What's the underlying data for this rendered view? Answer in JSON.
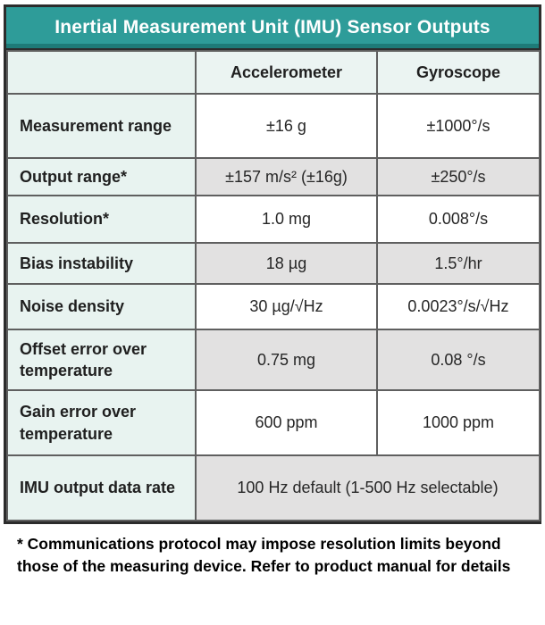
{
  "table": {
    "title": "Inertial Measurement Unit (IMU) Sensor Outputs",
    "columns": [
      "",
      "Accelerometer",
      "Gyroscope"
    ],
    "rows": [
      {
        "label": "Measurement range",
        "accelerometer": "±16 g",
        "gyroscope": "±1000°/s"
      },
      {
        "label": "Output range*",
        "accelerometer": "±157 m/s² (±16g)",
        "gyroscope": "±250°/s"
      },
      {
        "label": "Resolution*",
        "accelerometer": "1.0 mg",
        "gyroscope": "0.008°/s"
      },
      {
        "label": "Bias instability",
        "accelerometer": "18 µg",
        "gyroscope": "1.5°/hr"
      },
      {
        "label": "Noise density",
        "accelerometer": "30 µg/√Hz",
        "gyroscope": "0.0023°/s/√Hz"
      },
      {
        "label": "Offset error over temperature",
        "accelerometer": "0.75 mg",
        "gyroscope": "0.08 °/s"
      },
      {
        "label": "Gain error over temperature",
        "accelerometer": "600 ppm",
        "gyroscope": "1000 ppm"
      },
      {
        "label": "IMU output data rate",
        "merged_value": "100 Hz default (1-500 Hz selectable)"
      }
    ],
    "footnote": "* Communications protocol may impose resolution limits beyond those of the measuring device. Refer to product manual for details"
  },
  "colors": {
    "header_teal": "#2e9c99",
    "header_teal_dark": "#1e7b78",
    "label_cell_mint": "#e8f3f0",
    "column_header_bg": "#ebf4f2",
    "row_alt_gray": "#e2e1e1",
    "row_white": "#ffffff",
    "border_outer": "#2c2c2c",
    "border_inner": "#5f5f5f",
    "title_text": "#ffffff",
    "body_text": "#262626"
  }
}
